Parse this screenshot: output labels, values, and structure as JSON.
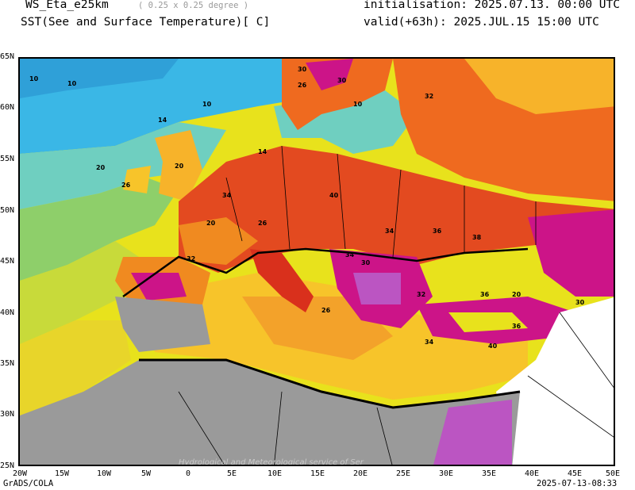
{
  "header": {
    "model": "WS_Eta_e25km",
    "resolution": "( 0.25 x 0.25 degree )",
    "variable": "SST(See and Surface Temperature)[ C]",
    "initialisation": "initialisation: 2025.07.13. 00:00 UTC",
    "valid": "valid(+63h): 2025.JUL.15 15:00 UTC"
  },
  "map": {
    "lat_labels": [
      "65N",
      "60N",
      "55N",
      "50N",
      "45N",
      "40N",
      "35N",
      "30N",
      "25N"
    ],
    "lon_labels": [
      "20W",
      "15W",
      "10W",
      "5W",
      "0",
      "5E",
      "10E",
      "15E",
      "20E",
      "25E",
      "30E",
      "35E",
      "40E",
      "45E",
      "50E"
    ],
    "watermark": "Hydrological and Meteorological service of Ser",
    "contour_labels": [
      "10",
      "10",
      "10",
      "10",
      "14",
      "14",
      "20",
      "20",
      "26",
      "26",
      "30",
      "30",
      "32",
      "34",
      "20",
      "26",
      "32",
      "40",
      "34",
      "36",
      "38",
      "34",
      "30",
      "26",
      "32",
      "36",
      "20",
      "30",
      "34",
      "40",
      "36"
    ],
    "palette": {
      "c10": "#3ab7e6",
      "c14": "#6fcfc0",
      "c18": "#8ecf6a",
      "c22": "#e8e21c",
      "c26": "#f7b32a",
      "c30": "#ef6a1f",
      "c34": "#d9301c",
      "c38": "#cc1488",
      "c42": "#bb55c2",
      "land": "#9a9a9a"
    }
  },
  "footer": {
    "software": "GrADS/COLA",
    "timestamp": "2025-07-13-08:33"
  }
}
